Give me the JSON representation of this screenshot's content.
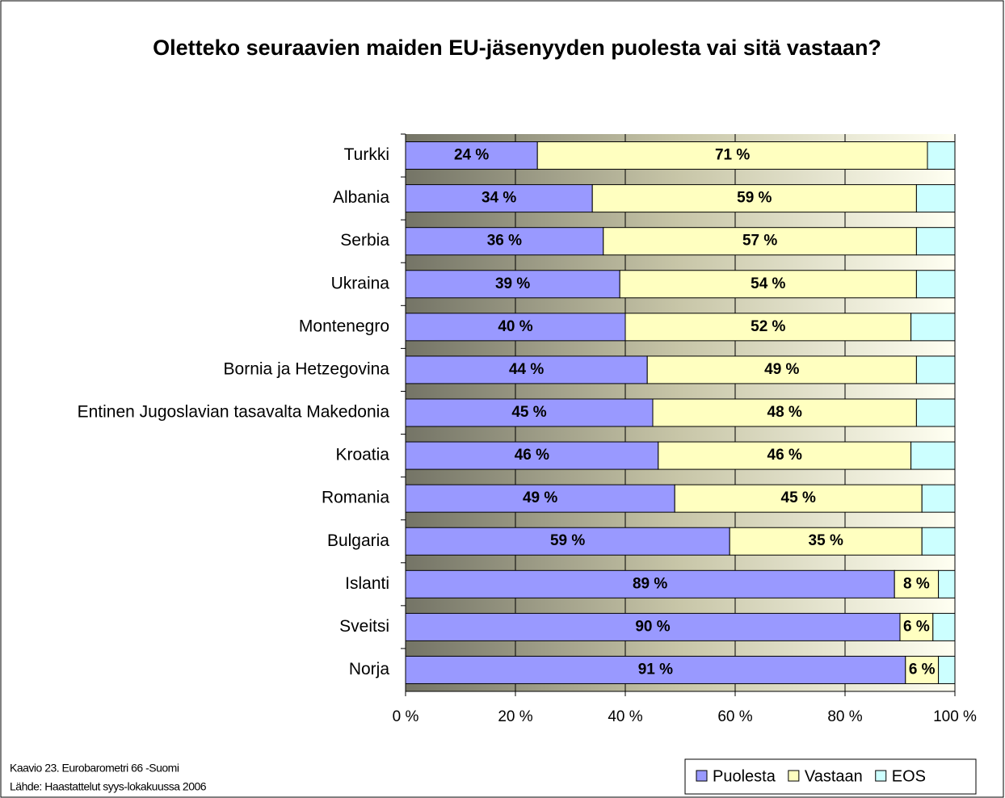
{
  "chart_data": {
    "type": "stacked_bar_horizontal",
    "title": "Oletteko seuraavien maiden EU-jäsenyyden puolesta vai sitä vastaan?",
    "categories": [
      "Turkki",
      "Albania",
      "Serbia",
      "Ukraina",
      "Montenegro",
      "Bornia ja Hetzegovina",
      "Entinen Jugoslavian tasavalta Makedonia",
      "Kroatia",
      "Romania",
      "Bulgaria",
      "Islanti",
      "Sveitsi",
      "Norja"
    ],
    "series": [
      {
        "name": "Puolesta",
        "color": "#9999ff",
        "values": [
          24,
          34,
          36,
          39,
          40,
          44,
          45,
          46,
          49,
          59,
          89,
          90,
          91
        ],
        "value_labels": [
          "24 %",
          "34 %",
          "36 %",
          "39 %",
          "40 %",
          "44 %",
          "45 %",
          "46 %",
          "49 %",
          "59 %",
          "89 %",
          "90 %",
          "91 %"
        ]
      },
      {
        "name": "Vastaan",
        "color": "#ffffc0",
        "values": [
          71,
          59,
          57,
          54,
          52,
          49,
          48,
          46,
          45,
          35,
          8,
          6,
          6
        ],
        "value_labels": [
          "71 %",
          "59 %",
          "57 %",
          "54 %",
          "52 %",
          "49 %",
          "48 %",
          "46 %",
          "45 %",
          "35 %",
          "8 %",
          "6 %",
          "6 %"
        ]
      },
      {
        "name": "EOS",
        "color": "#ccffff",
        "values": [
          5,
          7,
          7,
          7,
          8,
          7,
          7,
          8,
          6,
          6,
          3,
          4,
          3
        ]
      }
    ],
    "xlim": [
      0,
      100
    ],
    "xticks": [
      {
        "value": 0,
        "label": "0 %"
      },
      {
        "value": 20,
        "label": "20 %"
      },
      {
        "value": 40,
        "label": "40 %"
      },
      {
        "value": 60,
        "label": "60 %"
      },
      {
        "value": 80,
        "label": "80 %"
      },
      {
        "value": 100,
        "label": "100 %"
      }
    ],
    "grid": true,
    "notes": [
      "Kaavio 23. Eurobarometri 66 -Suomi",
      "Lähde: Haastattelut syys-lokakuussa 2006"
    ]
  }
}
